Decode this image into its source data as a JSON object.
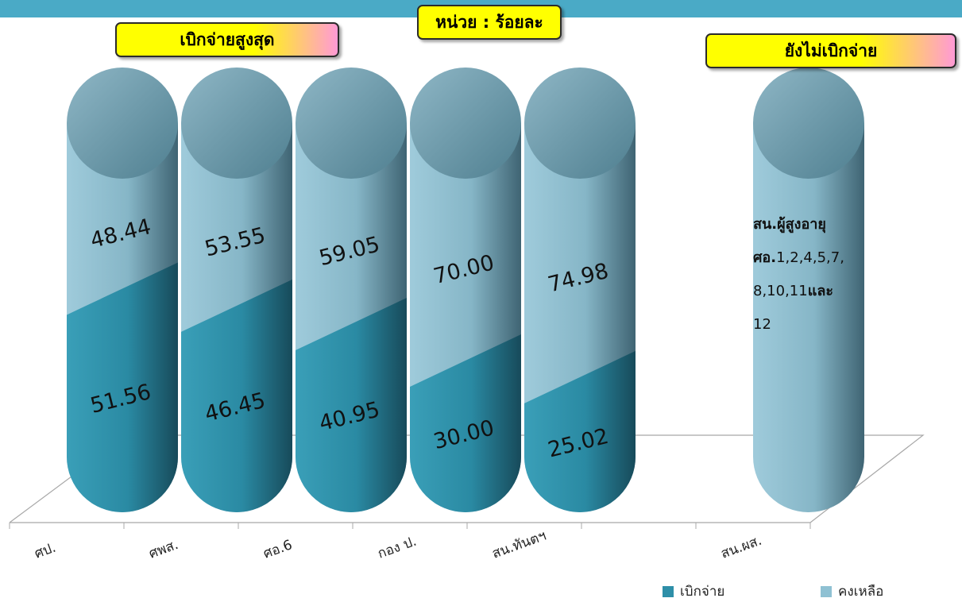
{
  "tags": {
    "highest": "เบิกจ่ายสูงสุด",
    "unit": "หน่วย : ร้อยละ",
    "not_disbursed": "ยังไม่เบิกจ่าย"
  },
  "note": {
    "line1": "สน.ผู้สูงอายุ",
    "line2_bold": "ศอ.",
    "line2_rest": "1,2,4,5,7,",
    "line3_num": "8,10,11",
    "line3_bold": "และ",
    "line4": "12"
  },
  "colors": {
    "disbursed": "#2e8fa8",
    "remaining": "#8fc1d3"
  },
  "chart_data": {
    "type": "bar",
    "stacked": true,
    "unit": "ร้อยละ",
    "categories": [
      "ศป.",
      "ศพส.",
      "ศอ.6",
      "กอง ป.",
      "สน.ทันตฯ",
      "",
      "สน.ผส."
    ],
    "series": [
      {
        "name": "เบิกจ่าย",
        "values": [
          51.56,
          46.45,
          40.95,
          30.0,
          25.02,
          null,
          0
        ],
        "labels": [
          "51.56",
          "46.45",
          "40.95",
          "30.00",
          "25.02",
          "",
          ""
        ]
      },
      {
        "name": "คงเหลือ",
        "values": [
          48.44,
          53.55,
          59.05,
          70.0,
          74.98,
          null,
          100
        ],
        "labels": [
          "48.44",
          "53.55",
          "59.05",
          "70.00",
          "74.98",
          "",
          ""
        ]
      }
    ],
    "ylim": [
      0,
      100
    ],
    "legend": "bottom-right"
  }
}
